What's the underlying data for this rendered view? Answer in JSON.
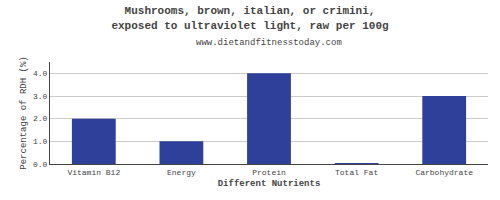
{
  "chart_data": {
    "type": "bar",
    "title": "Mushrooms, brown, italian, or crimini, exposed to ultraviolet light, raw per 100g",
    "subtitle": "www.dietandfitnesstoday.com",
    "xlabel": "Different Nutrients",
    "ylabel": "Percentage of RDH (%)",
    "categories": [
      "Vitamin B12",
      "Energy",
      "Protein",
      "Total Fat",
      "Carbohydrate"
    ],
    "values": [
      2.0,
      1.0,
      4.0,
      0.03,
      3.0
    ],
    "color": "#2e4099",
    "ylim": [
      0,
      4.5
    ],
    "yticks": [
      {
        "value": 0.0,
        "label": "0.0"
      },
      {
        "value": 1.0,
        "label": "1.0"
      },
      {
        "value": 2.0,
        "label": "2.0"
      },
      {
        "value": 3.0,
        "label": "3.0"
      },
      {
        "value": 4.0,
        "label": "4.0"
      }
    ],
    "grid": true
  }
}
